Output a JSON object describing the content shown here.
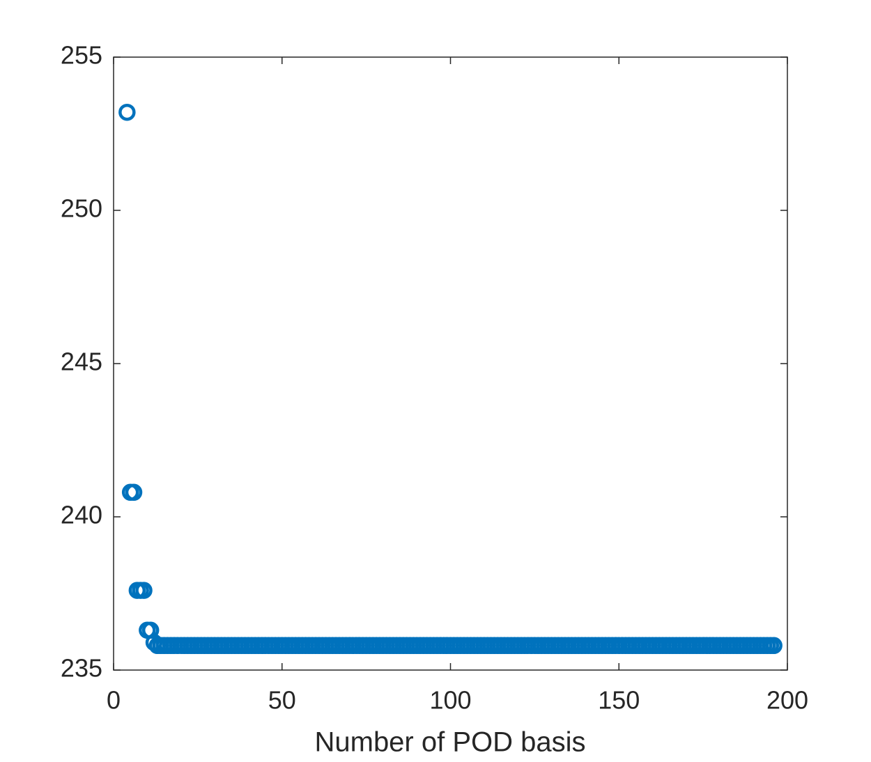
{
  "chart_data": {
    "type": "scatter",
    "xlabel": "Number of POD basis",
    "x": [
      4,
      5,
      6,
      7,
      8,
      9,
      10,
      11,
      12,
      13,
      14,
      15,
      16,
      17,
      18,
      19,
      20,
      21,
      22,
      23,
      24,
      25,
      26,
      27,
      28,
      29,
      30,
      31,
      32,
      33,
      34,
      35,
      36,
      37,
      38,
      39,
      40,
      41,
      42,
      43,
      44,
      45,
      46,
      47,
      48,
      49,
      50,
      51,
      52,
      53,
      54,
      55,
      56,
      57,
      58,
      59,
      60,
      61,
      62,
      63,
      64,
      65,
      66,
      67,
      68,
      69,
      70,
      71,
      72,
      73,
      74,
      75,
      76,
      77,
      78,
      79,
      80,
      81,
      82,
      83,
      84,
      85,
      86,
      87,
      88,
      89,
      90,
      91,
      92,
      93,
      94,
      95,
      96,
      97,
      98,
      99,
      100,
      101,
      102,
      103,
      104,
      105,
      106,
      107,
      108,
      109,
      110,
      111,
      112,
      113,
      114,
      115,
      116,
      117,
      118,
      119,
      120,
      121,
      122,
      123,
      124,
      125,
      126,
      127,
      128,
      129,
      130,
      131,
      132,
      133,
      134,
      135,
      136,
      137,
      138,
      139,
      140,
      141,
      142,
      143,
      144,
      145,
      146,
      147,
      148,
      149,
      150,
      151,
      152,
      153,
      154,
      155,
      156,
      157,
      158,
      159,
      160,
      161,
      162,
      163,
      164,
      165,
      166,
      167,
      168,
      169,
      170,
      171,
      172,
      173,
      174,
      175,
      176,
      177,
      178,
      179,
      180,
      181,
      182,
      183,
      184,
      185,
      186,
      187,
      188,
      189,
      190,
      191,
      192,
      193,
      194,
      195,
      196
    ],
    "values": [
      253.2,
      240.8,
      240.8,
      237.6,
      237.6,
      237.6,
      236.3,
      236.3,
      235.9,
      235.8,
      235.8,
      235.8,
      235.8,
      235.8,
      235.8,
      235.8,
      235.8,
      235.8,
      235.8,
      235.8,
      235.8,
      235.8,
      235.8,
      235.8,
      235.8,
      235.8,
      235.8,
      235.8,
      235.8,
      235.8,
      235.8,
      235.8,
      235.8,
      235.8,
      235.8,
      235.8,
      235.8,
      235.8,
      235.8,
      235.8,
      235.8,
      235.8,
      235.8,
      235.8,
      235.8,
      235.8,
      235.8,
      235.8,
      235.8,
      235.8,
      235.8,
      235.8,
      235.8,
      235.8,
      235.8,
      235.8,
      235.8,
      235.8,
      235.8,
      235.8,
      235.8,
      235.8,
      235.8,
      235.8,
      235.8,
      235.8,
      235.8,
      235.8,
      235.8,
      235.8,
      235.8,
      235.8,
      235.8,
      235.8,
      235.8,
      235.8,
      235.8,
      235.8,
      235.8,
      235.8,
      235.8,
      235.8,
      235.8,
      235.8,
      235.8,
      235.8,
      235.8,
      235.8,
      235.8,
      235.8,
      235.8,
      235.8,
      235.8,
      235.8,
      235.8,
      235.8,
      235.8,
      235.8,
      235.8,
      235.8,
      235.8,
      235.8,
      235.8,
      235.8,
      235.8,
      235.8,
      235.8,
      235.8,
      235.8,
      235.8,
      235.8,
      235.8,
      235.8,
      235.8,
      235.8,
      235.8,
      235.8,
      235.8,
      235.8,
      235.8,
      235.8,
      235.8,
      235.8,
      235.8,
      235.8,
      235.8,
      235.8,
      235.8,
      235.8,
      235.8,
      235.8,
      235.8,
      235.8,
      235.8,
      235.8,
      235.8,
      235.8,
      235.8,
      235.8,
      235.8,
      235.8,
      235.8,
      235.8,
      235.8,
      235.8,
      235.8,
      235.8,
      235.8,
      235.8,
      235.8,
      235.8,
      235.8,
      235.8,
      235.8,
      235.8,
      235.8,
      235.8,
      235.8,
      235.8,
      235.8,
      235.8,
      235.8,
      235.8,
      235.8,
      235.8,
      235.8,
      235.8,
      235.8,
      235.8,
      235.8,
      235.8,
      235.8,
      235.8,
      235.8,
      235.8,
      235.8,
      235.8,
      235.8,
      235.8,
      235.8,
      235.8,
      235.8,
      235.8,
      235.8,
      235.8,
      235.8,
      235.8,
      235.8,
      235.8,
      235.8,
      235.8,
      235.8,
      235.8
    ],
    "color": "#0072bd",
    "xlim": [
      0,
      200
    ],
    "xticks": [
      0,
      50,
      100,
      150,
      200
    ],
    "ylim": [
      235,
      255
    ],
    "yticks": [
      235,
      240,
      245,
      250,
      255
    ],
    "grid": false
  }
}
